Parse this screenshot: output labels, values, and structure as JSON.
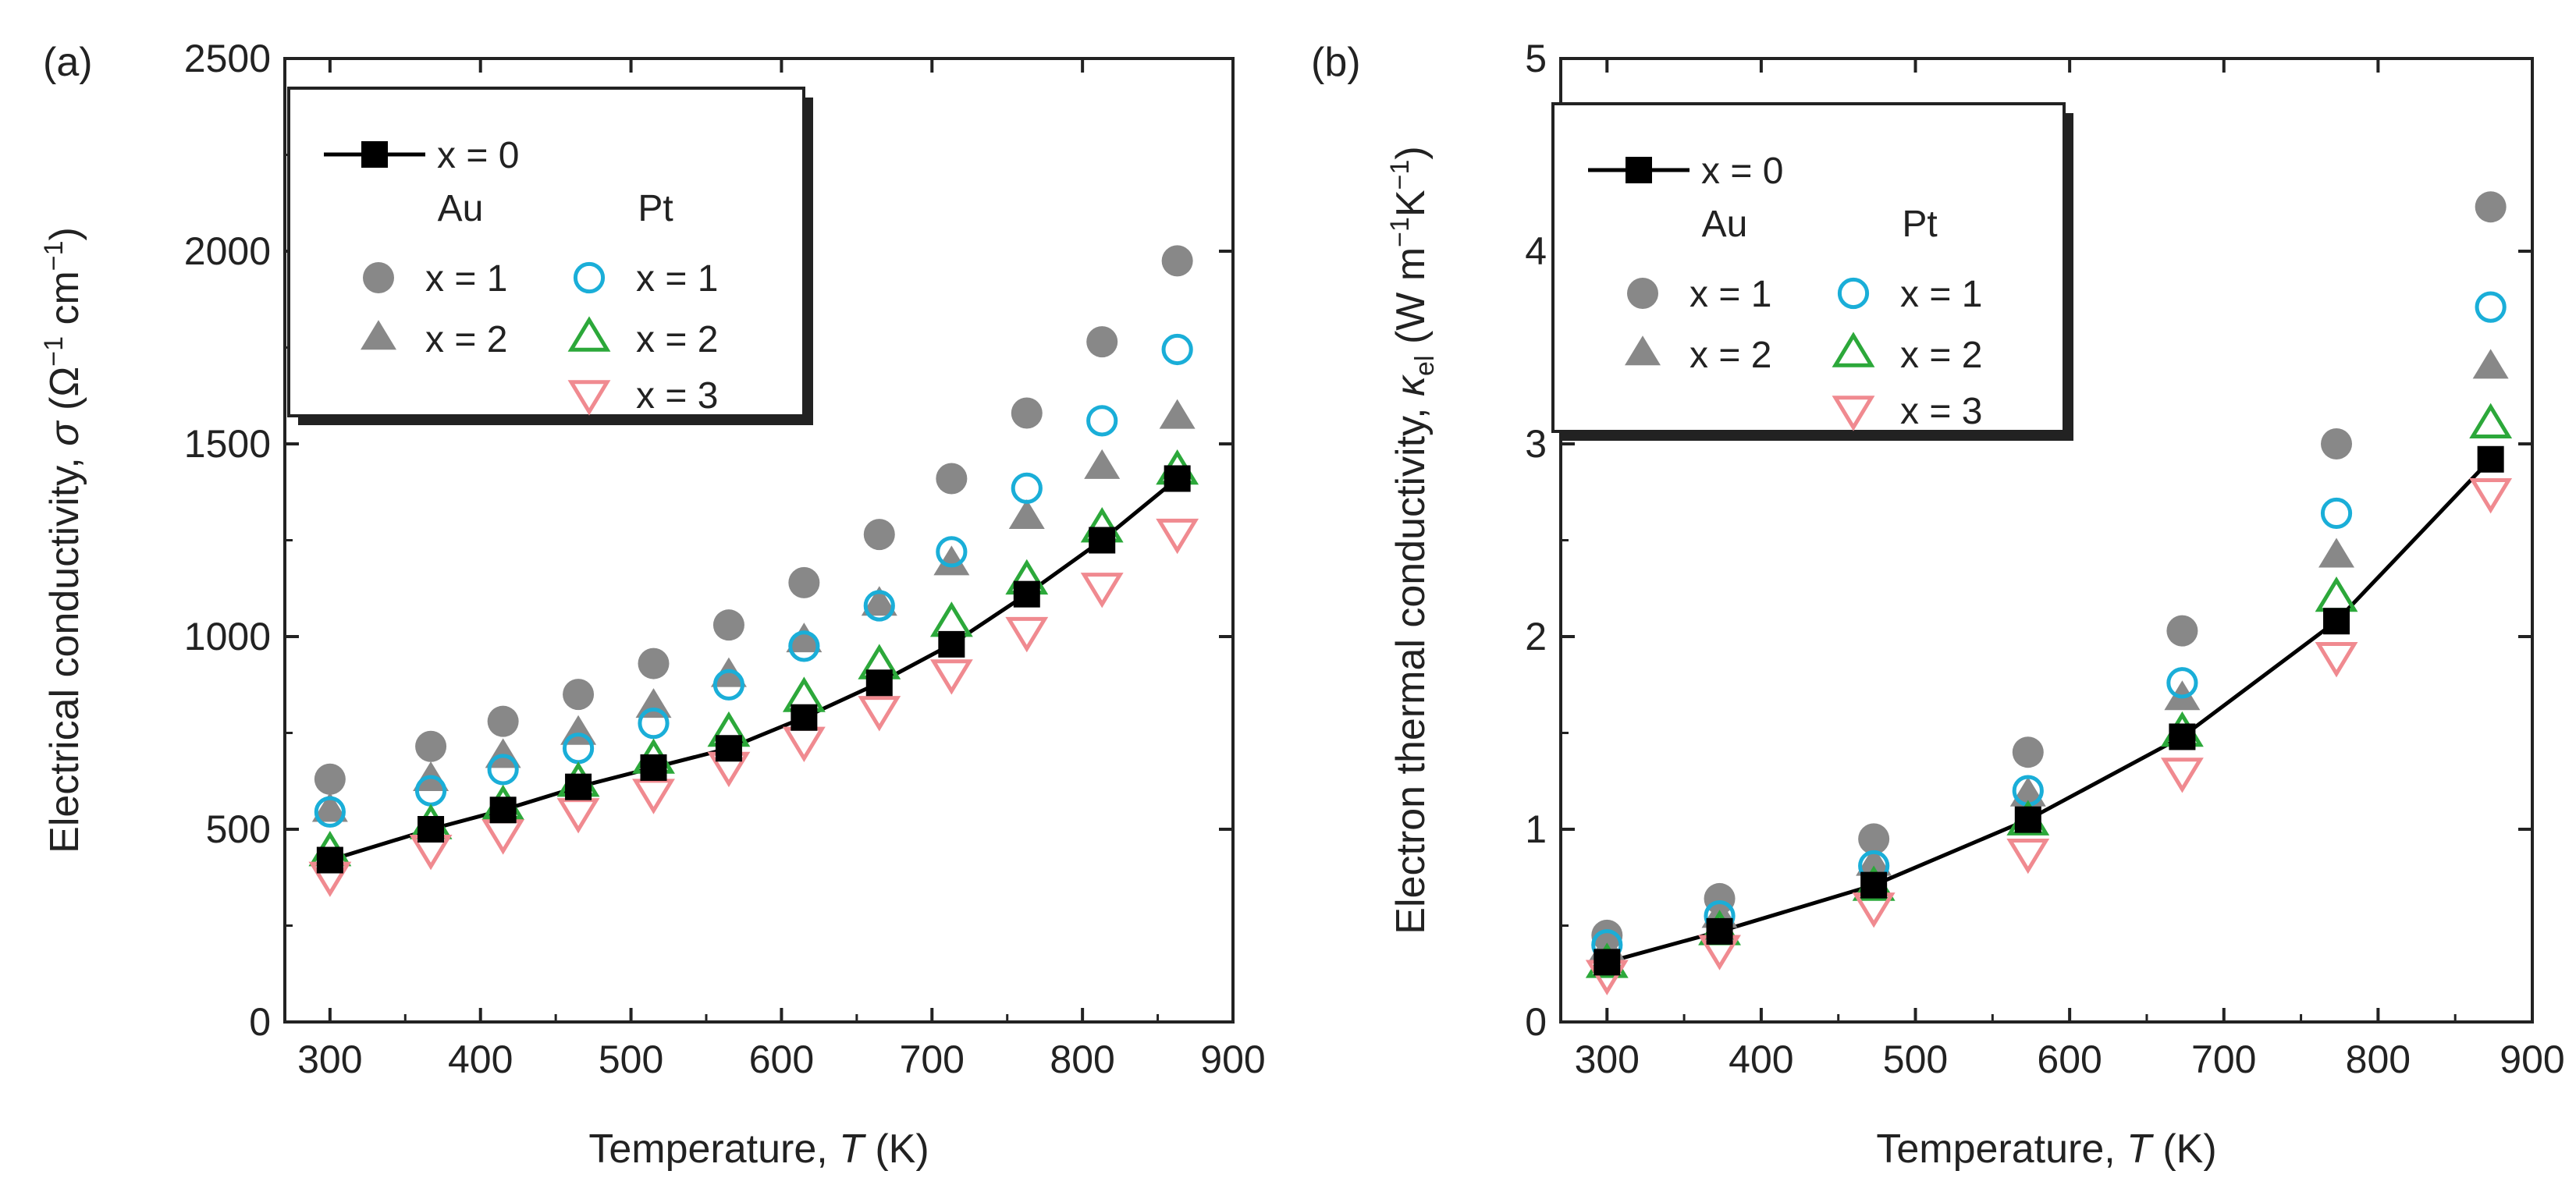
{
  "figure": {
    "background": "#ffffff"
  },
  "colors": {
    "x0": "#000000",
    "au": "#888888",
    "pt_x1": "#1aaed8",
    "pt_x2": "#2ca83a",
    "pt_x3": "#f08a90"
  },
  "chart_data": [
    {
      "panel_label": "(a)",
      "type": "scatter",
      "title": "",
      "xlabel": "Temperature, T (K)",
      "ylabel": "Electrical conductivity, σ (Ω⁻¹ cm⁻¹)",
      "xlabel_parts": [
        "Temperature, ",
        "T",
        " (K)"
      ],
      "ylabel_parts": [
        "Electrical conductivity, ",
        "σ",
        " (Ω",
        "−1",
        " cm",
        "−1",
        ")"
      ],
      "xlim": [
        270,
        900
      ],
      "ylim": [
        0,
        2500
      ],
      "xticks": [
        300,
        400,
        500,
        600,
        700,
        800,
        900
      ],
      "yticks": [
        0,
        500,
        1000,
        1500,
        2000,
        2500
      ],
      "grid": false,
      "legend_position": "top-left",
      "legend": {
        "x0_label": "x = 0",
        "au_header": "Au",
        "pt_header": "Pt",
        "au_x1": "x = 1",
        "au_x2": "x = 2",
        "pt_x1": "x = 1",
        "pt_x2": "x = 2",
        "pt_x3": "x = 3"
      },
      "x": [
        300,
        367,
        415,
        465,
        515,
        565,
        615,
        665,
        713,
        763,
        813,
        863
      ],
      "series": [
        {
          "name": "x = 0",
          "group": "",
          "marker": "square",
          "line": true,
          "values": [
            420,
            500,
            550,
            610,
            660,
            710,
            790,
            880,
            980,
            1110,
            1250,
            1410
          ]
        },
        {
          "name": "Au x = 1",
          "group": "Au",
          "marker": "circle-filled",
          "line": false,
          "values": [
            630,
            715,
            780,
            850,
            930,
            1030,
            1140,
            1265,
            1410,
            1580,
            1765,
            1975
          ]
        },
        {
          "name": "Au x = 2",
          "group": "Au",
          "marker": "triangle-up-filled",
          "line": false,
          "values": [
            550,
            630,
            690,
            750,
            820,
            900,
            990,
            1085,
            1190,
            1310,
            1440,
            1570
          ]
        },
        {
          "name": "Pt x = 1",
          "group": "Pt",
          "marker": "circle-open",
          "line": false,
          "values": [
            545,
            600,
            655,
            710,
            775,
            875,
            975,
            1080,
            1220,
            1385,
            1560,
            1745
          ]
        },
        {
          "name": "Pt x = 2",
          "group": "Pt",
          "marker": "triangle-up-open",
          "line": false,
          "values": [
            440,
            510,
            560,
            620,
            680,
            750,
            840,
            925,
            1035,
            1145,
            1280,
            1430
          ]
        },
        {
          "name": "Pt x = 3",
          "group": "Pt",
          "marker": "triangle-down-open",
          "line": false,
          "values": [
            380,
            450,
            490,
            545,
            595,
            665,
            730,
            810,
            905,
            1015,
            1130,
            1270
          ]
        }
      ]
    },
    {
      "panel_label": "(b)",
      "type": "scatter",
      "title": "",
      "xlabel": "Temperature, T (K)",
      "ylabel": "Electron thermal conductivity, κel (W m⁻¹ K⁻¹)",
      "xlabel_parts": [
        "Temperature, ",
        "T",
        " (K)"
      ],
      "ylabel_parts": [
        "Electron thermal conductivity, ",
        "κ",
        "el",
        " (W m",
        "−1",
        "K",
        "−1",
        ")"
      ],
      "xlim": [
        270,
        900
      ],
      "ylim": [
        0,
        5
      ],
      "xticks": [
        300,
        400,
        500,
        600,
        700,
        800,
        900
      ],
      "yticks": [
        0,
        1,
        2,
        3,
        4,
        5
      ],
      "grid": false,
      "legend_position": "top-left",
      "legend": {
        "x0_label": "x = 0",
        "au_header": "Au",
        "pt_header": "Pt",
        "au_x1": "x = 1",
        "au_x2": "x = 2",
        "pt_x1": "x = 1",
        "pt_x2": "x = 2",
        "pt_x3": "x = 3"
      },
      "x": [
        300,
        373,
        473,
        573,
        673,
        773,
        873
      ],
      "series": [
        {
          "name": "x = 0",
          "group": "",
          "marker": "square",
          "line": true,
          "values": [
            0.31,
            0.47,
            0.71,
            1.05,
            1.48,
            2.08,
            2.92
          ]
        },
        {
          "name": "Au x = 1",
          "group": "Au",
          "marker": "circle-filled",
          "line": false,
          "values": [
            0.45,
            0.64,
            0.95,
            1.4,
            2.03,
            3.0,
            4.23
          ]
        },
        {
          "name": "Au x = 2",
          "group": "Au",
          "marker": "triangle-up-filled",
          "line": false,
          "values": [
            0.38,
            0.55,
            0.82,
            1.18,
            1.68,
            2.42,
            3.4
          ]
        },
        {
          "name": "Pt x = 1",
          "group": "Pt",
          "marker": "circle-open",
          "line": false,
          "values": [
            0.4,
            0.55,
            0.81,
            1.2,
            1.76,
            2.64,
            3.71
          ]
        },
        {
          "name": "Pt x = 2",
          "group": "Pt",
          "marker": "triangle-up-open",
          "line": false,
          "values": [
            0.3,
            0.47,
            0.7,
            1.04,
            1.5,
            2.2,
            3.1
          ]
        },
        {
          "name": "Pt x = 3",
          "group": "Pt",
          "marker": "triangle-down-open",
          "line": false,
          "values": [
            0.25,
            0.38,
            0.6,
            0.88,
            1.3,
            1.9,
            2.75
          ]
        }
      ]
    }
  ]
}
